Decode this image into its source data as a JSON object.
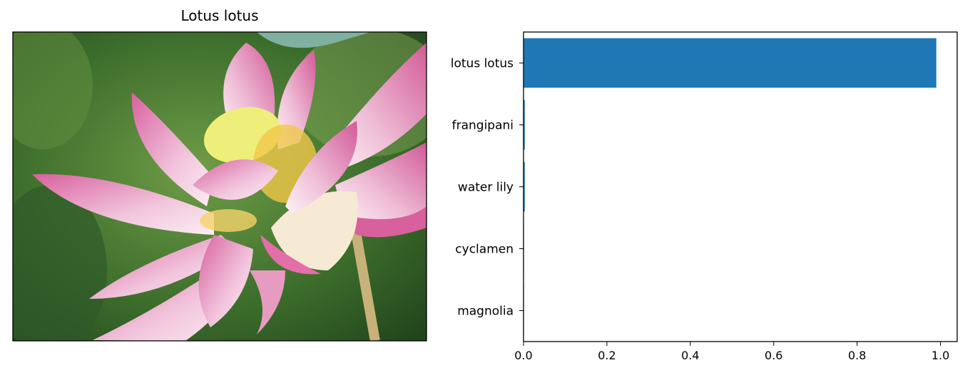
{
  "image_panel": {
    "title": "Lotus lotus"
  },
  "chart_data": {
    "type": "bar",
    "orientation": "horizontal",
    "categories": [
      "lotus lotus",
      "frangipani",
      "water lily",
      "cyclamen",
      "magnolia"
    ],
    "values": [
      0.99,
      0.003,
      0.003,
      0.001,
      0.001
    ],
    "xlim": [
      0,
      1.04
    ],
    "xticks": [
      "0.0",
      "0.2",
      "0.4",
      "0.6",
      "0.8",
      "1.0"
    ],
    "bar_color": "#1f77b4",
    "grid": false
  }
}
